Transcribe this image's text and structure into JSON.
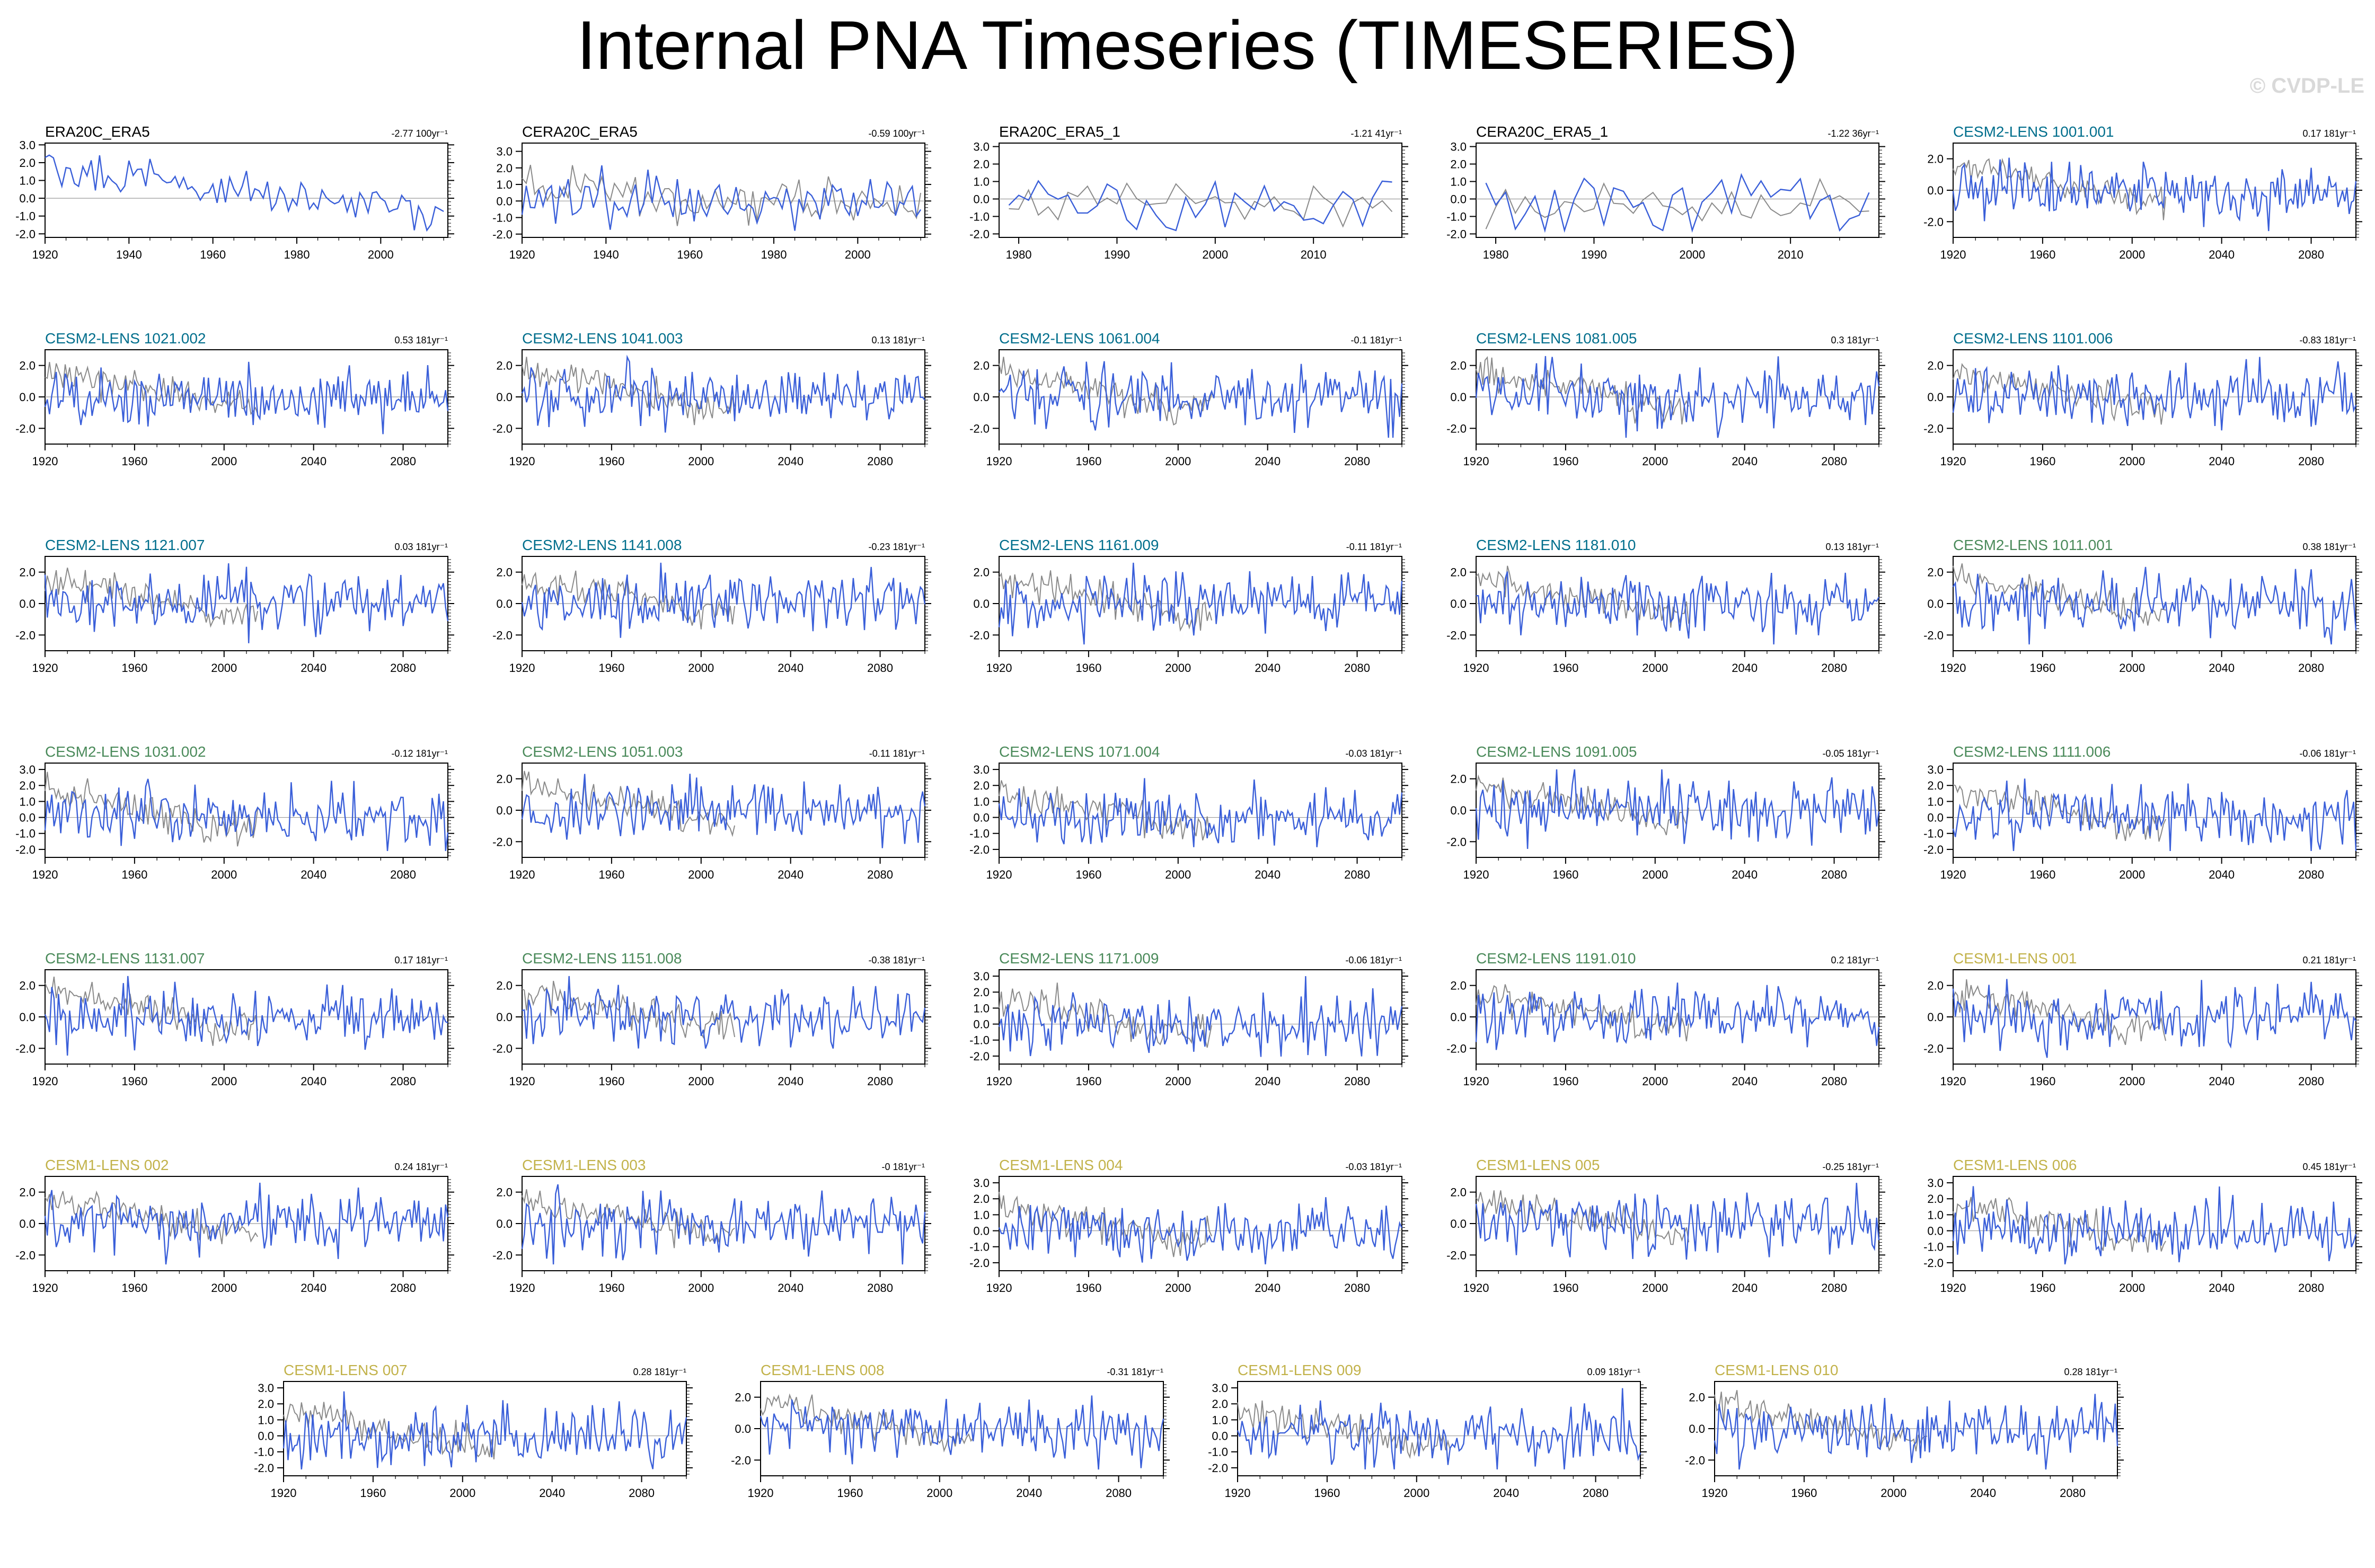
{
  "title": "Internal PNA Timeseries (TIMESERIES)",
  "watermark": "© CVDP-LE",
  "colors": {
    "model": "#3a5fd9",
    "observed": "#8a8a8a",
    "obs_title": "#000000",
    "cesm2_a": "#006e8c",
    "cesm2_b": "#4a8a5a",
    "cesm1": "#c2b24a"
  },
  "chart_data": [
    {
      "type": "line",
      "title": "ERA20C_ERA5",
      "trend": "-2.77 100yr⁻¹",
      "title_color": "obs_title",
      "xlim": [
        1920,
        2016
      ],
      "ylim": [
        -2.2,
        3.1
      ],
      "xticks": [
        1920,
        1940,
        1960,
        1980,
        2000
      ],
      "yticks": [
        -2,
        -1,
        0,
        1,
        2,
        3
      ],
      "series": []
    },
    {
      "type": "line",
      "title": "CERA20C_ERA5",
      "trend": "-0.59 100yr⁻¹",
      "title_color": "obs_title",
      "xlim": [
        1920,
        2016
      ],
      "ylim": [
        -2.2,
        3.5
      ],
      "xticks": [
        1920,
        1940,
        1960,
        1980,
        2000
      ],
      "yticks": [
        -2,
        -1,
        0,
        1,
        2,
        3
      ],
      "series": []
    },
    {
      "type": "line",
      "title": "ERA20C_ERA5_1",
      "trend": "-1.21 41yr⁻¹",
      "title_color": "obs_title",
      "xlim": [
        1978,
        2019
      ],
      "ylim": [
        -2.2,
        3.2
      ],
      "xticks": [
        1980,
        1990,
        2000,
        2010
      ],
      "yticks": [
        -2,
        -1,
        0,
        1,
        2,
        3
      ],
      "series": []
    },
    {
      "type": "line",
      "title": "CERA20C_ERA5_1",
      "trend": "-1.22 36yr⁻¹",
      "title_color": "obs_title",
      "xlim": [
        1978,
        2019
      ],
      "ylim": [
        -2.2,
        3.2
      ],
      "xticks": [
        1980,
        1990,
        2000,
        2010
      ],
      "yticks": [
        -2,
        -1,
        0,
        1,
        2,
        3
      ],
      "series": []
    },
    {
      "type": "line",
      "title": "CESM2-LENS 1001.001",
      "trend": "0.17 181yr⁻¹",
      "title_color": "cesm2_a",
      "xlim": [
        1920,
        2100
      ],
      "ylim": [
        -3,
        3
      ],
      "xticks": [
        1920,
        1960,
        2000,
        2040,
        2080
      ],
      "yticks": [
        -2,
        0,
        2
      ],
      "series": []
    },
    {
      "type": "line",
      "title": "CESM2-LENS 1021.002",
      "trend": "0.53 181yr⁻¹",
      "title_color": "cesm2_a",
      "xlim": [
        1920,
        2100
      ],
      "ylim": [
        -3,
        3
      ],
      "xticks": [
        1920,
        1960,
        2000,
        2040,
        2080
      ],
      "yticks": [
        -2,
        0,
        2
      ],
      "series": []
    },
    {
      "type": "line",
      "title": "CESM2-LENS 1041.003",
      "trend": "0.13 181yr⁻¹",
      "title_color": "cesm2_a",
      "xlim": [
        1920,
        2100
      ],
      "ylim": [
        -3,
        3
      ],
      "xticks": [
        1920,
        1960,
        2000,
        2040,
        2080
      ],
      "yticks": [
        -2,
        0,
        2
      ],
      "series": []
    },
    {
      "type": "line",
      "title": "CESM2-LENS 1061.004",
      "trend": "-0.1 181yr⁻¹",
      "title_color": "cesm2_a",
      "xlim": [
        1920,
        2100
      ],
      "ylim": [
        -3,
        3
      ],
      "xticks": [
        1920,
        1960,
        2000,
        2040,
        2080
      ],
      "yticks": [
        -2,
        0,
        2
      ],
      "series": []
    },
    {
      "type": "line",
      "title": "CESM2-LENS 1081.005",
      "trend": "0.3 181yr⁻¹",
      "title_color": "cesm2_a",
      "xlim": [
        1920,
        2100
      ],
      "ylim": [
        -3,
        3
      ],
      "xticks": [
        1920,
        1960,
        2000,
        2040,
        2080
      ],
      "yticks": [
        -2,
        0,
        2
      ],
      "series": []
    },
    {
      "type": "line",
      "title": "CESM2-LENS 1101.006",
      "trend": "-0.83 181yr⁻¹",
      "title_color": "cesm2_a",
      "xlim": [
        1920,
        2100
      ],
      "ylim": [
        -3,
        3
      ],
      "xticks": [
        1920,
        1960,
        2000,
        2040,
        2080
      ],
      "yticks": [
        -2,
        0,
        2
      ],
      "series": []
    },
    {
      "type": "line",
      "title": "CESM2-LENS 1121.007",
      "trend": "0.03 181yr⁻¹",
      "title_color": "cesm2_a",
      "xlim": [
        1920,
        2100
      ],
      "ylim": [
        -3,
        3
      ],
      "xticks": [
        1920,
        1960,
        2000,
        2040,
        2080
      ],
      "yticks": [
        -2,
        0,
        2
      ],
      "series": []
    },
    {
      "type": "line",
      "title": "CESM2-LENS 1141.008",
      "trend": "-0.23 181yr⁻¹",
      "title_color": "cesm2_a",
      "xlim": [
        1920,
        2100
      ],
      "ylim": [
        -3,
        3
      ],
      "xticks": [
        1920,
        1960,
        2000,
        2040,
        2080
      ],
      "yticks": [
        -2,
        0,
        2
      ],
      "series": []
    },
    {
      "type": "line",
      "title": "CESM2-LENS 1161.009",
      "trend": "-0.11 181yr⁻¹",
      "title_color": "cesm2_a",
      "xlim": [
        1920,
        2100
      ],
      "ylim": [
        -3,
        3
      ],
      "xticks": [
        1920,
        1960,
        2000,
        2040,
        2080
      ],
      "yticks": [
        -2,
        0,
        2
      ],
      "series": []
    },
    {
      "type": "line",
      "title": "CESM2-LENS 1181.010",
      "trend": "0.13 181yr⁻¹",
      "title_color": "cesm2_a",
      "xlim": [
        1920,
        2100
      ],
      "ylim": [
        -3,
        3
      ],
      "xticks": [
        1920,
        1960,
        2000,
        2040,
        2080
      ],
      "yticks": [
        -2,
        0,
        2
      ],
      "series": []
    },
    {
      "type": "line",
      "title": "CESM2-LENS 1011.001",
      "trend": "0.38 181yr⁻¹",
      "title_color": "cesm2_b",
      "xlim": [
        1920,
        2100
      ],
      "ylim": [
        -3,
        3
      ],
      "xticks": [
        1920,
        1960,
        2000,
        2040,
        2080
      ],
      "yticks": [
        -2,
        0,
        2
      ],
      "series": []
    },
    {
      "type": "line",
      "title": "CESM2-LENS 1031.002",
      "trend": "-0.12 181yr⁻¹",
      "title_color": "cesm2_b",
      "xlim": [
        1920,
        2100
      ],
      "ylim": [
        -2.5,
        3.4
      ],
      "xticks": [
        1920,
        1960,
        2000,
        2040,
        2080
      ],
      "yticks": [
        -2,
        -1,
        0,
        1,
        2,
        3
      ],
      "series": []
    },
    {
      "type": "line",
      "title": "CESM2-LENS 1051.003",
      "trend": "-0.11 181yr⁻¹",
      "title_color": "cesm2_b",
      "xlim": [
        1920,
        2100
      ],
      "ylim": [
        -3,
        3
      ],
      "xticks": [
        1920,
        1960,
        2000,
        2040,
        2080
      ],
      "yticks": [
        -2,
        0,
        2
      ],
      "series": []
    },
    {
      "type": "line",
      "title": "CESM2-LENS 1071.004",
      "trend": "-0.03 181yr⁻¹",
      "title_color": "cesm2_b",
      "xlim": [
        1920,
        2100
      ],
      "ylim": [
        -2.5,
        3.4
      ],
      "xticks": [
        1920,
        1960,
        2000,
        2040,
        2080
      ],
      "yticks": [
        -2,
        -1,
        0,
        1,
        2,
        3
      ],
      "series": []
    },
    {
      "type": "line",
      "title": "CESM2-LENS 1091.005",
      "trend": "-0.05 181yr⁻¹",
      "title_color": "cesm2_b",
      "xlim": [
        1920,
        2100
      ],
      "ylim": [
        -3,
        3
      ],
      "xticks": [
        1920,
        1960,
        2000,
        2040,
        2080
      ],
      "yticks": [
        -2,
        0,
        2
      ],
      "series": []
    },
    {
      "type": "line",
      "title": "CESM2-LENS 1111.006",
      "trend": "-0.06 181yr⁻¹",
      "title_color": "cesm2_b",
      "xlim": [
        1920,
        2100
      ],
      "ylim": [
        -2.5,
        3.4
      ],
      "xticks": [
        1920,
        1960,
        2000,
        2040,
        2080
      ],
      "yticks": [
        -2,
        -1,
        0,
        1,
        2,
        3
      ],
      "series": []
    },
    {
      "type": "line",
      "title": "CESM2-LENS 1131.007",
      "trend": "0.17 181yr⁻¹",
      "title_color": "cesm2_b",
      "xlim": [
        1920,
        2100
      ],
      "ylim": [
        -3,
        3
      ],
      "xticks": [
        1920,
        1960,
        2000,
        2040,
        2080
      ],
      "yticks": [
        -2,
        0,
        2
      ],
      "series": []
    },
    {
      "type": "line",
      "title": "CESM2-LENS 1151.008",
      "trend": "-0.38 181yr⁻¹",
      "title_color": "cesm2_b",
      "xlim": [
        1920,
        2100
      ],
      "ylim": [
        -3,
        3
      ],
      "xticks": [
        1920,
        1960,
        2000,
        2040,
        2080
      ],
      "yticks": [
        -2,
        0,
        2
      ],
      "series": []
    },
    {
      "type": "line",
      "title": "CESM2-LENS 1171.009",
      "trend": "-0.06 181yr⁻¹",
      "title_color": "cesm2_b",
      "xlim": [
        1920,
        2100
      ],
      "ylim": [
        -2.5,
        3.4
      ],
      "xticks": [
        1920,
        1960,
        2000,
        2040,
        2080
      ],
      "yticks": [
        -2,
        -1,
        0,
        1,
        2,
        3
      ],
      "series": []
    },
    {
      "type": "line",
      "title": "CESM2-LENS 1191.010",
      "trend": "0.2 181yr⁻¹",
      "title_color": "cesm2_b",
      "xlim": [
        1920,
        2100
      ],
      "ylim": [
        -3,
        3
      ],
      "xticks": [
        1920,
        1960,
        2000,
        2040,
        2080
      ],
      "yticks": [
        -2,
        0,
        2
      ],
      "series": []
    },
    {
      "type": "line",
      "title": "CESM1-LENS 001",
      "trend": "0.21 181yr⁻¹",
      "title_color": "cesm1",
      "xlim": [
        1920,
        2100
      ],
      "ylim": [
        -3,
        3
      ],
      "xticks": [
        1920,
        1960,
        2000,
        2040,
        2080
      ],
      "yticks": [
        -2,
        0,
        2
      ],
      "series": []
    },
    {
      "type": "line",
      "title": "CESM1-LENS 002",
      "trend": "0.24 181yr⁻¹",
      "title_color": "cesm1",
      "xlim": [
        1920,
        2100
      ],
      "ylim": [
        -3,
        3
      ],
      "xticks": [
        1920,
        1960,
        2000,
        2040,
        2080
      ],
      "yticks": [
        -2,
        0,
        2
      ],
      "series": []
    },
    {
      "type": "line",
      "title": "CESM1-LENS 003",
      "trend": "-0 181yr⁻¹",
      "title_color": "cesm1",
      "xlim": [
        1920,
        2100
      ],
      "ylim": [
        -3,
        3
      ],
      "xticks": [
        1920,
        1960,
        2000,
        2040,
        2080
      ],
      "yticks": [
        -2,
        0,
        2
      ],
      "series": []
    },
    {
      "type": "line",
      "title": "CESM1-LENS 004",
      "trend": "-0.03 181yr⁻¹",
      "title_color": "cesm1",
      "xlim": [
        1920,
        2100
      ],
      "ylim": [
        -2.5,
        3.4
      ],
      "xticks": [
        1920,
        1960,
        2000,
        2040,
        2080
      ],
      "yticks": [
        -2,
        -1,
        0,
        1,
        2,
        3
      ],
      "series": []
    },
    {
      "type": "line",
      "title": "CESM1-LENS 005",
      "trend": "-0.25 181yr⁻¹",
      "title_color": "cesm1",
      "xlim": [
        1920,
        2100
      ],
      "ylim": [
        -3,
        3
      ],
      "xticks": [
        1920,
        1960,
        2000,
        2040,
        2080
      ],
      "yticks": [
        -2,
        0,
        2
      ],
      "series": []
    },
    {
      "type": "line",
      "title": "CESM1-LENS 006",
      "trend": "0.45 181yr⁻¹",
      "title_color": "cesm1",
      "xlim": [
        1920,
        2100
      ],
      "ylim": [
        -2.5,
        3.4
      ],
      "xticks": [
        1920,
        1960,
        2000,
        2040,
        2080
      ],
      "yticks": [
        -2,
        -1,
        0,
        1,
        2,
        3
      ],
      "series": []
    },
    {
      "type": "line",
      "title": "CESM1-LENS 007",
      "trend": "0.28 181yr⁻¹",
      "title_color": "cesm1",
      "xlim": [
        1920,
        2100
      ],
      "ylim": [
        -2.5,
        3.4
      ],
      "xticks": [
        1920,
        1960,
        2000,
        2040,
        2080
      ],
      "yticks": [
        -2,
        -1,
        0,
        1,
        2,
        3
      ],
      "series": []
    },
    {
      "type": "line",
      "title": "CESM1-LENS 008",
      "trend": "-0.31 181yr⁻¹",
      "title_color": "cesm1",
      "xlim": [
        1920,
        2100
      ],
      "ylim": [
        -3,
        3
      ],
      "xticks": [
        1920,
        1960,
        2000,
        2040,
        2080
      ],
      "yticks": [
        -2,
        0,
        2
      ],
      "series": []
    },
    {
      "type": "line",
      "title": "CESM1-LENS 009",
      "trend": "0.09 181yr⁻¹",
      "title_color": "cesm1",
      "xlim": [
        1920,
        2100
      ],
      "ylim": [
        -2.5,
        3.4
      ],
      "xticks": [
        1920,
        1960,
        2000,
        2040,
        2080
      ],
      "yticks": [
        -2,
        -1,
        0,
        1,
        2,
        3
      ],
      "series": []
    },
    {
      "type": "line",
      "title": "CESM1-LENS 010",
      "trend": "0.28 181yr⁻¹",
      "title_color": "cesm1",
      "xlim": [
        1920,
        2100
      ],
      "ylim": [
        -3,
        3
      ],
      "xticks": [
        1920,
        1960,
        2000,
        2040,
        2080
      ],
      "yticks": [
        -2,
        0,
        2
      ],
      "series": []
    }
  ]
}
